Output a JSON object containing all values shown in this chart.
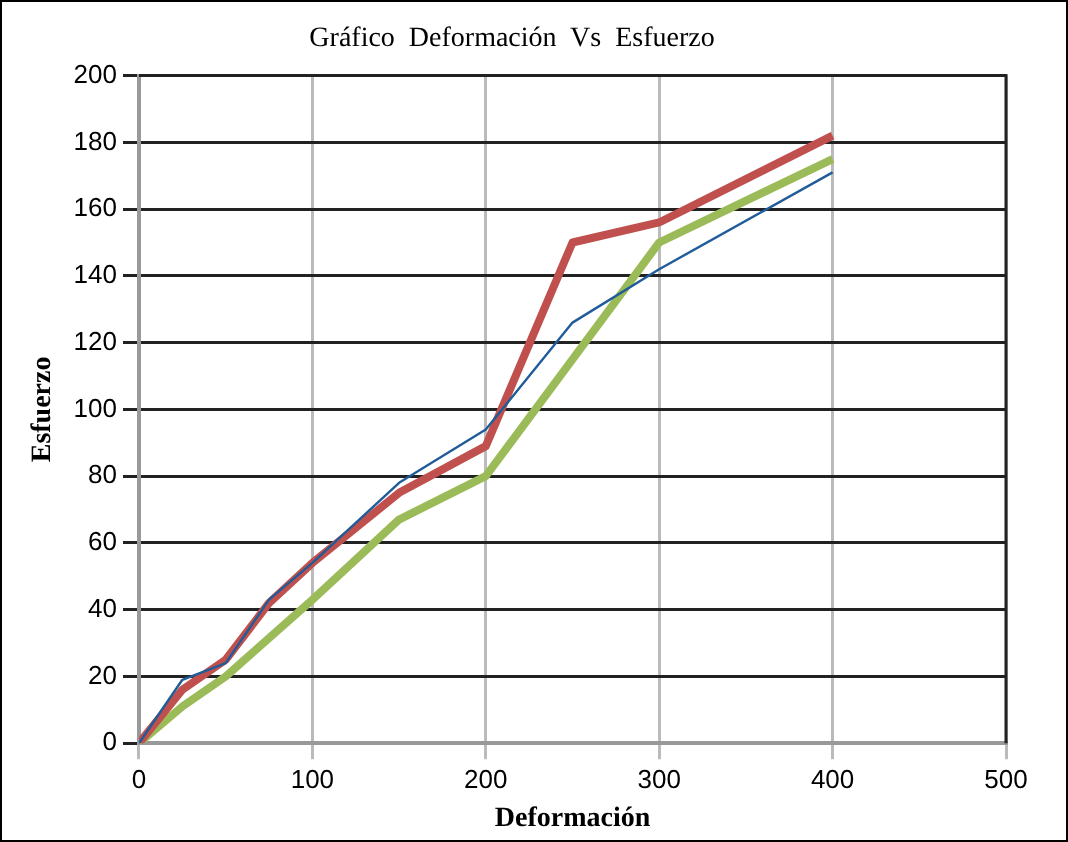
{
  "chart_data": {
    "type": "line",
    "title": "Gráfico  Deformación  Vs  Esfuerzo",
    "xlabel": "Deformación",
    "ylabel": "Esfuerzo",
    "xlim": [
      0,
      500
    ],
    "xticks": [
      0,
      100,
      200,
      300,
      400,
      500
    ],
    "ylim": [
      0,
      200
    ],
    "yticks": [
      0,
      20,
      40,
      60,
      80,
      100,
      120,
      140,
      160,
      180,
      200
    ],
    "grid": true,
    "marker": "none",
    "legend": false,
    "series": [
      {
        "color": "#1f5c99",
        "x": [
          0,
          25,
          50,
          75,
          100,
          150,
          200,
          250,
          300,
          400
        ],
        "values": [
          0,
          19,
          24,
          43,
          54,
          78,
          94,
          126,
          142,
          171
        ]
      },
      {
        "color": "#c0504d",
        "x": [
          0,
          25,
          50,
          75,
          100,
          150,
          200,
          250,
          300,
          400
        ],
        "values": [
          0,
          16,
          25,
          42,
          54,
          75,
          89,
          150,
          156,
          182
        ]
      },
      {
        "color": "#9bbb59",
        "x": [
          0,
          25,
          50,
          100,
          150,
          200,
          250,
          300,
          400
        ],
        "values": [
          0,
          11,
          20,
          43,
          67,
          80,
          115,
          150,
          175
        ]
      }
    ]
  }
}
